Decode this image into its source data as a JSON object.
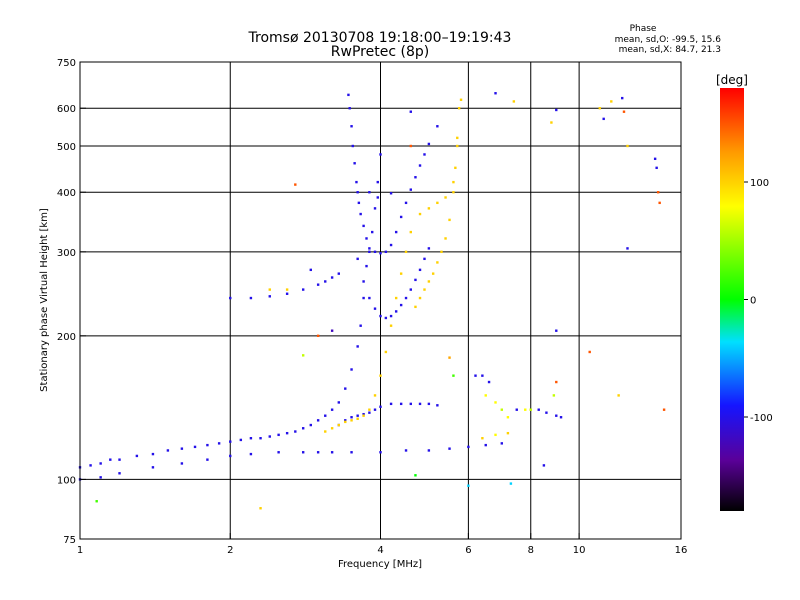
{
  "chart_data": {
    "type": "scatter",
    "title_line1": "Tromsø 20130708 19:18:00–19:19:43",
    "title_line2": "RwPretec (8p)",
    "phase_label": "Phase",
    "phase_o": "mean, sd,O: -99.5, 15.6",
    "phase_x": "mean, sd,X:  84.7, 21.3",
    "xlabel": "Frequency [MHz]",
    "ylabel": "Stationary phase Virtual Height [km]",
    "x_scale": "log",
    "y_scale": "log",
    "xlim": [
      1,
      16
    ],
    "ylim": [
      75,
      750
    ],
    "x_ticks": [
      1,
      2,
      4,
      6,
      8,
      10,
      16
    ],
    "x_tick_labels": [
      "1",
      "2",
      "4",
      "6",
      "8",
      "10",
      "16"
    ],
    "x_grid": [
      2,
      4,
      6,
      8,
      10
    ],
    "y_ticks": [
      75,
      100,
      200,
      300,
      400,
      500,
      600,
      750
    ],
    "y_tick_labels": [
      "75",
      "100",
      "200",
      "300",
      "400",
      "500",
      "600",
      "750"
    ],
    "y_grid": [
      100,
      200,
      300,
      400,
      500,
      600
    ],
    "colorbar": {
      "label": "[deg]",
      "range": [
        -180,
        180
      ],
      "ticks": [
        100,
        0,
        -100
      ],
      "tick_labels": [
        "100",
        "0",
        "-100"
      ]
    },
    "series": [
      {
        "points": [
          [
            1.0,
            106,
            -100
          ],
          [
            1.05,
            107,
            -100
          ],
          [
            1.1,
            108,
            -100
          ],
          [
            1.15,
            110,
            -100
          ],
          [
            1.2,
            110,
            -100
          ],
          [
            1.3,
            112,
            -100
          ],
          [
            1.4,
            113,
            -100
          ],
          [
            1.5,
            115,
            -100
          ],
          [
            1.6,
            116,
            -100
          ],
          [
            1.7,
            117,
            -100
          ],
          [
            1.8,
            118,
            -100
          ],
          [
            1.9,
            119,
            -100
          ],
          [
            2.0,
            120,
            -100
          ],
          [
            2.1,
            121,
            -100
          ],
          [
            2.2,
            122,
            -100
          ],
          [
            2.3,
            122,
            -100
          ],
          [
            2.4,
            123,
            -100
          ],
          [
            2.5,
            124,
            -100
          ],
          [
            2.6,
            125,
            -100
          ],
          [
            2.7,
            126,
            -100
          ],
          [
            2.8,
            128,
            -100
          ],
          [
            2.9,
            130,
            -100
          ],
          [
            3.0,
            133,
            -100
          ],
          [
            3.1,
            136,
            -100
          ],
          [
            3.2,
            140,
            -100
          ],
          [
            3.3,
            145,
            -100
          ],
          [
            3.4,
            155,
            -100
          ],
          [
            3.5,
            170,
            -100
          ],
          [
            3.6,
            190,
            -100
          ],
          [
            3.65,
            210,
            -100
          ],
          [
            3.7,
            240,
            -100
          ],
          [
            3.75,
            280,
            -100
          ],
          [
            3.8,
            300,
            -100
          ],
          [
            3.85,
            330,
            -100
          ],
          [
            3.9,
            370,
            -100
          ],
          [
            3.95,
            420,
            -100
          ],
          [
            4.0,
            480,
            -100
          ]
        ]
      },
      {
        "points": [
          [
            1.0,
            100,
            -100
          ],
          [
            1.1,
            101,
            -100
          ],
          [
            1.2,
            103,
            -100
          ],
          [
            1.4,
            106,
            -100
          ],
          [
            1.6,
            108,
            -100
          ],
          [
            1.8,
            110,
            -100
          ],
          [
            2.0,
            112,
            -100
          ],
          [
            2.2,
            113,
            -100
          ],
          [
            2.5,
            114,
            -100
          ],
          [
            2.8,
            114,
            -100
          ],
          [
            3.0,
            114,
            -100
          ],
          [
            3.2,
            114,
            -100
          ],
          [
            3.5,
            114,
            -100
          ],
          [
            4.0,
            114,
            -100
          ],
          [
            4.5,
            115,
            -100
          ],
          [
            5.0,
            115,
            -100
          ],
          [
            5.5,
            116,
            -100
          ],
          [
            6.0,
            117,
            -100
          ],
          [
            6.5,
            118,
            -100
          ],
          [
            7.0,
            119,
            -100
          ]
        ]
      },
      {
        "points": [
          [
            2.0,
            240,
            -100
          ],
          [
            2.2,
            240,
            -100
          ],
          [
            2.4,
            242,
            -100
          ],
          [
            2.6,
            245,
            -100
          ],
          [
            2.8,
            250,
            -100
          ],
          [
            3.0,
            256,
            -100
          ],
          [
            3.1,
            260,
            -100
          ],
          [
            3.2,
            265,
            -100
          ],
          [
            3.3,
            270,
            -100
          ]
        ]
      },
      {
        "points": [
          [
            3.45,
            640,
            -100
          ],
          [
            3.47,
            600,
            -100
          ],
          [
            3.5,
            550,
            -100
          ],
          [
            3.52,
            500,
            -100
          ],
          [
            3.55,
            460,
            -100
          ],
          [
            3.58,
            420,
            -100
          ],
          [
            3.6,
            400,
            -100
          ],
          [
            3.62,
            380,
            -100
          ],
          [
            3.65,
            360,
            -100
          ],
          [
            3.7,
            340,
            -100
          ],
          [
            3.75,
            320,
            -100
          ],
          [
            3.8,
            305,
            -100
          ],
          [
            3.9,
            300,
            -100
          ],
          [
            4.0,
            298,
            -100
          ],
          [
            4.1,
            300,
            -100
          ],
          [
            4.2,
            310,
            -100
          ],
          [
            4.3,
            330,
            -100
          ],
          [
            4.4,
            355,
            -100
          ],
          [
            4.5,
            380,
            -100
          ],
          [
            4.6,
            405,
            -100
          ],
          [
            4.7,
            430,
            -100
          ],
          [
            4.8,
            455,
            -100
          ],
          [
            4.9,
            480,
            -100
          ],
          [
            5.0,
            505,
            -100
          ],
          [
            5.2,
            550,
            -100
          ]
        ]
      },
      {
        "points": [
          [
            3.6,
            290,
            -100
          ],
          [
            3.7,
            260,
            -100
          ],
          [
            3.8,
            240,
            -100
          ],
          [
            3.9,
            228,
            -100
          ],
          [
            4.0,
            220,
            -100
          ],
          [
            4.1,
            218,
            -100
          ],
          [
            4.2,
            220,
            -100
          ],
          [
            4.3,
            225,
            -100
          ],
          [
            4.4,
            232,
            -100
          ],
          [
            4.5,
            240,
            -100
          ],
          [
            4.6,
            250,
            -100
          ],
          [
            4.7,
            262,
            -100
          ],
          [
            4.8,
            275,
            -100
          ],
          [
            4.9,
            290,
            -100
          ],
          [
            5.0,
            305,
            -100
          ]
        ]
      },
      {
        "points": [
          [
            3.3,
            130,
            -100
          ],
          [
            3.4,
            133,
            -100
          ],
          [
            3.5,
            135,
            -100
          ],
          [
            3.6,
            136,
            -100
          ],
          [
            3.7,
            137,
            -100
          ],
          [
            3.8,
            138,
            -100
          ],
          [
            3.9,
            140,
            -100
          ],
          [
            4.0,
            142,
            -100
          ],
          [
            4.2,
            144,
            -100
          ],
          [
            4.4,
            144,
            -100
          ],
          [
            4.6,
            144,
            -100
          ],
          [
            4.8,
            144,
            -100
          ],
          [
            5.0,
            144,
            -100
          ],
          [
            5.2,
            143,
            -100
          ]
        ]
      },
      {
        "points": [
          [
            3.1,
            126,
            100
          ],
          [
            3.2,
            128,
            100
          ],
          [
            3.3,
            130,
            100
          ],
          [
            3.4,
            132,
            100
          ],
          [
            3.5,
            133,
            100
          ],
          [
            3.6,
            134,
            100
          ],
          [
            3.7,
            136,
            100
          ],
          [
            3.8,
            140,
            100
          ],
          [
            3.9,
            150,
            100
          ],
          [
            4.0,
            165,
            100
          ],
          [
            4.1,
            185,
            100
          ],
          [
            4.2,
            210,
            100
          ],
          [
            4.3,
            240,
            100
          ],
          [
            4.4,
            270,
            100
          ],
          [
            4.5,
            300,
            100
          ],
          [
            4.6,
            330,
            100
          ],
          [
            4.8,
            360,
            100
          ],
          [
            5.0,
            370,
            100
          ],
          [
            5.2,
            380,
            100
          ],
          [
            5.4,
            390,
            100
          ],
          [
            5.6,
            420,
            100
          ],
          [
            5.7,
            500,
            100
          ],
          [
            5.75,
            600,
            100
          ]
        ]
      },
      {
        "points": [
          [
            4.7,
            230,
            100
          ],
          [
            4.8,
            240,
            100
          ],
          [
            4.9,
            250,
            100
          ],
          [
            5.0,
            260,
            100
          ],
          [
            5.1,
            270,
            100
          ],
          [
            5.2,
            285,
            100
          ],
          [
            5.3,
            300,
            100
          ],
          [
            5.4,
            320,
            100
          ],
          [
            5.5,
            350,
            100
          ],
          [
            5.6,
            400,
            100
          ],
          [
            5.65,
            450,
            100
          ],
          [
            5.7,
            520,
            100
          ]
        ]
      },
      {
        "points": [
          [
            6.2,
            165,
            -100
          ],
          [
            6.4,
            165,
            -100
          ],
          [
            6.6,
            160,
            -100
          ],
          [
            6.8,
            145,
            80
          ],
          [
            7.0,
            140,
            60
          ],
          [
            7.2,
            135,
            80
          ],
          [
            7.5,
            140,
            -100
          ],
          [
            7.8,
            140,
            80
          ],
          [
            8.0,
            140,
            60
          ],
          [
            8.3,
            140,
            -100
          ],
          [
            8.6,
            138,
            -100
          ],
          [
            9.0,
            136,
            -100
          ],
          [
            9.2,
            135,
            -100
          ],
          [
            6.4,
            122,
            100
          ],
          [
            6.8,
            124,
            80
          ],
          [
            7.2,
            125,
            100
          ]
        ]
      },
      {
        "points": [
          [
            2.7,
            415,
            150
          ],
          [
            7.4,
            620,
            100
          ],
          [
            8.8,
            560,
            100
          ],
          [
            9.0,
            595,
            -100
          ],
          [
            11.0,
            600,
            100
          ],
          [
            11.2,
            570,
            -100
          ],
          [
            11.6,
            620,
            100
          ],
          [
            12.2,
            630,
            -100
          ],
          [
            12.3,
            590,
            150
          ],
          [
            12.5,
            500,
            100
          ],
          [
            14.2,
            470,
            -100
          ],
          [
            14.3,
            450,
            -100
          ],
          [
            14.4,
            400,
            150
          ],
          [
            14.5,
            380,
            150
          ],
          [
            14.8,
            140,
            150
          ],
          [
            12.5,
            305,
            -100
          ],
          [
            12.0,
            150,
            100
          ],
          [
            10.5,
            185,
            150
          ],
          [
            9.0,
            205,
            -100
          ],
          [
            6.8,
            645,
            -100
          ],
          [
            5.8,
            625,
            100
          ],
          [
            4.6,
            590,
            -100
          ],
          [
            4.6,
            500,
            150
          ],
          [
            3.0,
            200,
            150
          ],
          [
            3.2,
            205,
            -120
          ],
          [
            4.7,
            102,
            0
          ],
          [
            6.0,
            97,
            -40
          ],
          [
            7.3,
            98,
            -40
          ],
          [
            8.5,
            107,
            -100
          ],
          [
            1.08,
            90,
            20
          ],
          [
            2.3,
            87,
            100
          ],
          [
            3.8,
            400,
            -100
          ],
          [
            4.2,
            398,
            -100
          ],
          [
            3.95,
            390,
            -100
          ],
          [
            9.0,
            160,
            150
          ],
          [
            8.9,
            150,
            60
          ],
          [
            5.6,
            165,
            20
          ],
          [
            5.5,
            180,
            120
          ],
          [
            6.5,
            150,
            80
          ],
          [
            2.8,
            182,
            60
          ],
          [
            2.9,
            275,
            -100
          ],
          [
            2.6,
            250,
            100
          ],
          [
            2.4,
            250,
            100
          ]
        ]
      }
    ]
  }
}
